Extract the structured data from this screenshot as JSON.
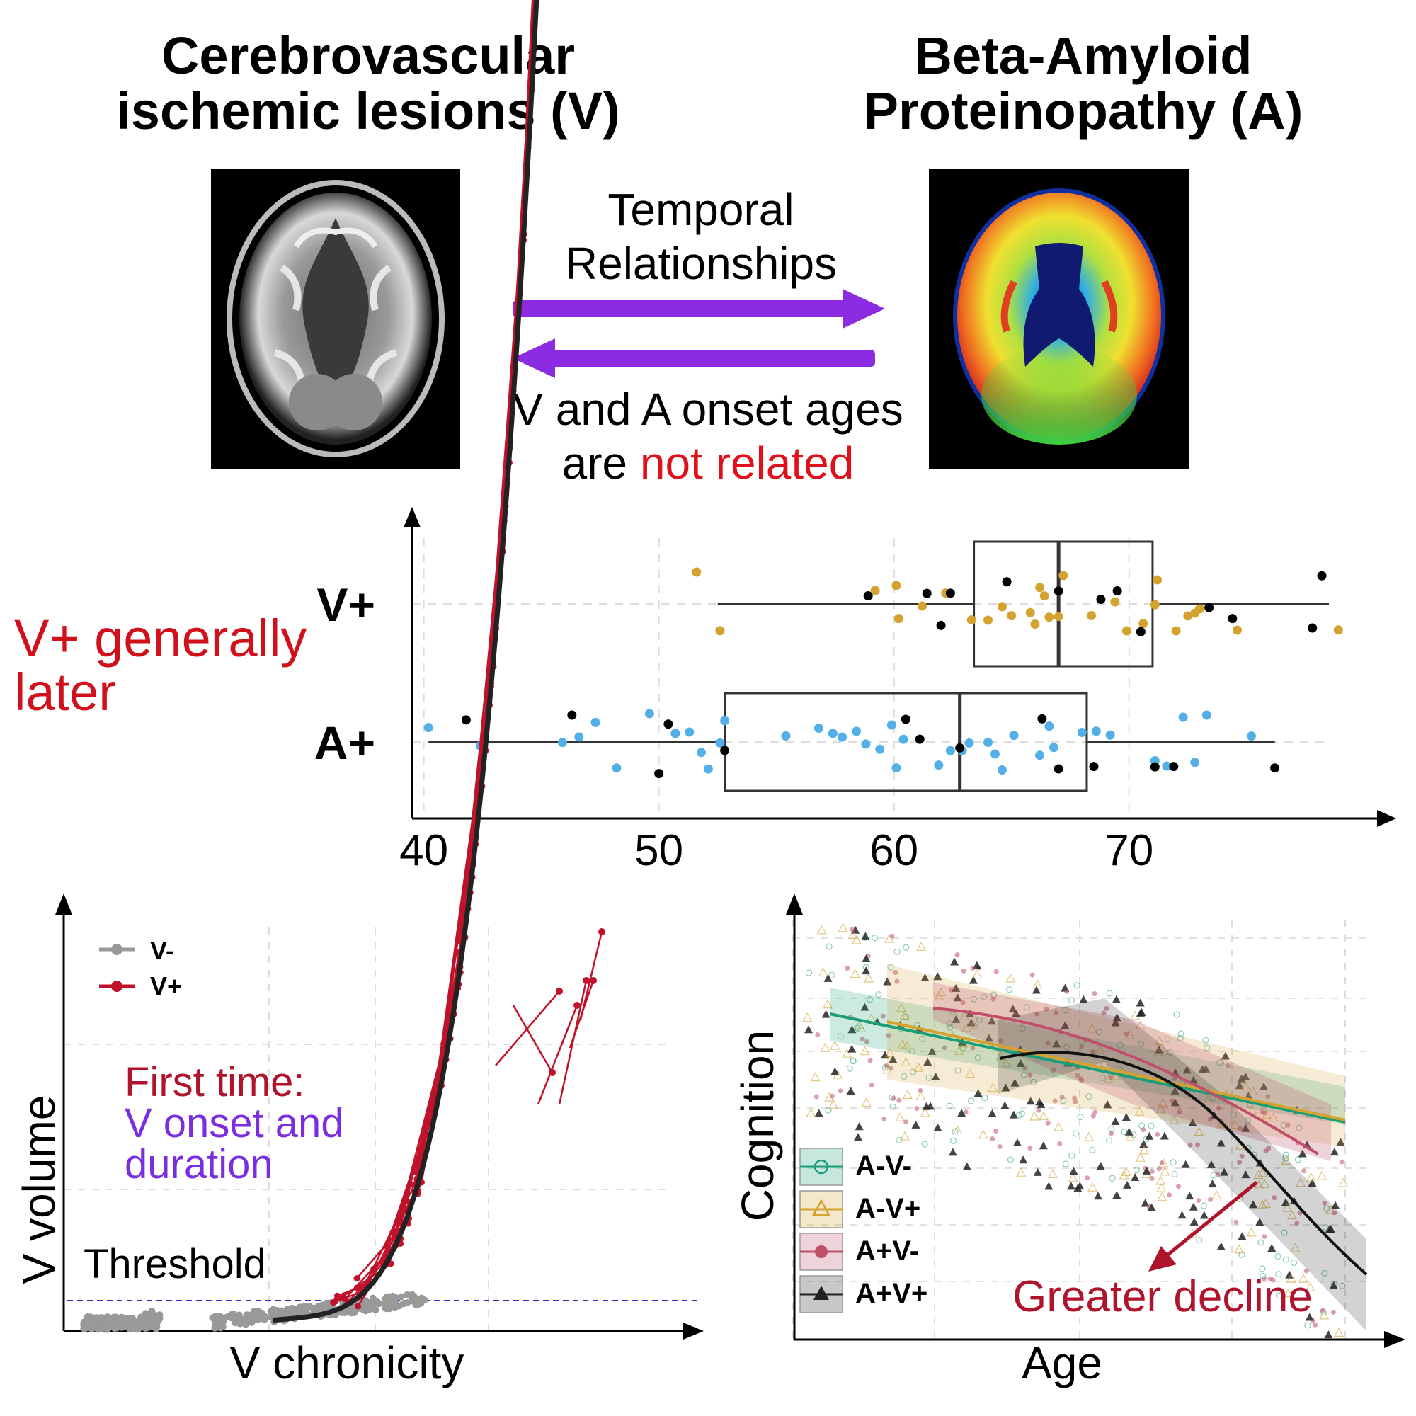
{
  "header": {
    "left_title": [
      "Cerebrovascular",
      "ischemic lesions (V)"
    ],
    "right_title": [
      "Beta-Amyloid",
      "Proteinopathy (A)"
    ]
  },
  "arrows_panel": {
    "top_label": [
      "Temporal",
      "Relationships"
    ],
    "bottom_label_line1": "V and A onset ages",
    "bottom_label_line2_prefix": "are ",
    "bottom_label_line2_highlight": "not related",
    "arrow_color": "#8b2be2",
    "highlight_color": "#e0101a"
  },
  "side_note": {
    "text": [
      "V+ generally",
      "later"
    ],
    "color": "#d0101a"
  },
  "colors": {
    "gold": "#d4a22f",
    "blue": "#53b0e6",
    "red": "#c0122a",
    "gray": "#999999",
    "purple": "#7a2ee0",
    "teal": "#1a9e77",
    "pink": "#c0506a",
    "threshold_line": "#3030c0"
  },
  "chart_data": [
    {
      "type": "box",
      "categories": [
        "V+",
        "A+"
      ],
      "x_ticks": [
        "40",
        "50",
        "60",
        "70"
      ],
      "xlim": [
        39.5,
        81
      ],
      "boxes": [
        {
          "name": "V+",
          "whisker_low": 52.5,
          "q1": 63.4,
          "median": 67,
          "q3": 71,
          "whisker_high": 78.5
        },
        {
          "name": "A+",
          "whisker_low": 40.2,
          "q1": 52.8,
          "median": 62.8,
          "q3": 68.2,
          "whisker_high": 76.2
        }
      ],
      "points": {
        "V+": {
          "gold": [
            51.6,
            52.6,
            59.2,
            60.1,
            60.2,
            61.2,
            62.2,
            63.3,
            64,
            64.6,
            65,
            65.8,
            66,
            66.2,
            66.4,
            66.6,
            67,
            67.2,
            68.4,
            69.4,
            69.9,
            70.6,
            71.2,
            71.1,
            72,
            72.5,
            72.8,
            73,
            74.6,
            78.9
          ],
          "black": [
            58.9,
            61.4,
            62,
            62.4,
            64.8,
            67,
            68.8,
            69.5,
            70.5,
            73.4,
            74.4,
            77.8,
            78.2
          ]
        },
        "A+": {
          "blue": [
            40.2,
            42.4,
            45.9,
            46.6,
            47.3,
            48.2,
            49.6,
            50.7,
            51.3,
            51.8,
            52.1,
            52.6,
            52.8,
            55.4,
            56.8,
            57.4,
            57.8,
            58.4,
            58.8,
            59.4,
            59.9,
            60.1,
            60.4,
            61.9,
            62.4,
            62.9,
            63.2,
            64,
            64.3,
            64.6,
            65.1,
            66.2,
            66.6,
            66.8,
            68,
            68.6,
            69.2,
            71.1,
            71.6,
            72.3,
            72.8,
            73.3,
            75.2
          ],
          "black": [
            41.8,
            46.3,
            50,
            50.4,
            52.8,
            60.5,
            61.1,
            62.8,
            66.3,
            67,
            68.5,
            71.1,
            71.9,
            76.2
          ]
        }
      }
    },
    {
      "type": "line",
      "xlabel": "V chronicity",
      "ylabel": "V volume",
      "series": [
        {
          "name": "V-"
        },
        {
          "name": "V+"
        }
      ],
      "annotation_line1": "First time:",
      "annotation_line2": "V onset and",
      "annotation_line3": "duration",
      "threshold_label": "Threshold"
    },
    {
      "type": "scatter",
      "xlabel": "Age",
      "ylabel": "Cognition",
      "series": [
        {
          "name": "A-V-"
        },
        {
          "name": "A-V+"
        },
        {
          "name": "A+V-"
        },
        {
          "name": "A+V+"
        }
      ],
      "annotation": "Greater decline"
    }
  ]
}
